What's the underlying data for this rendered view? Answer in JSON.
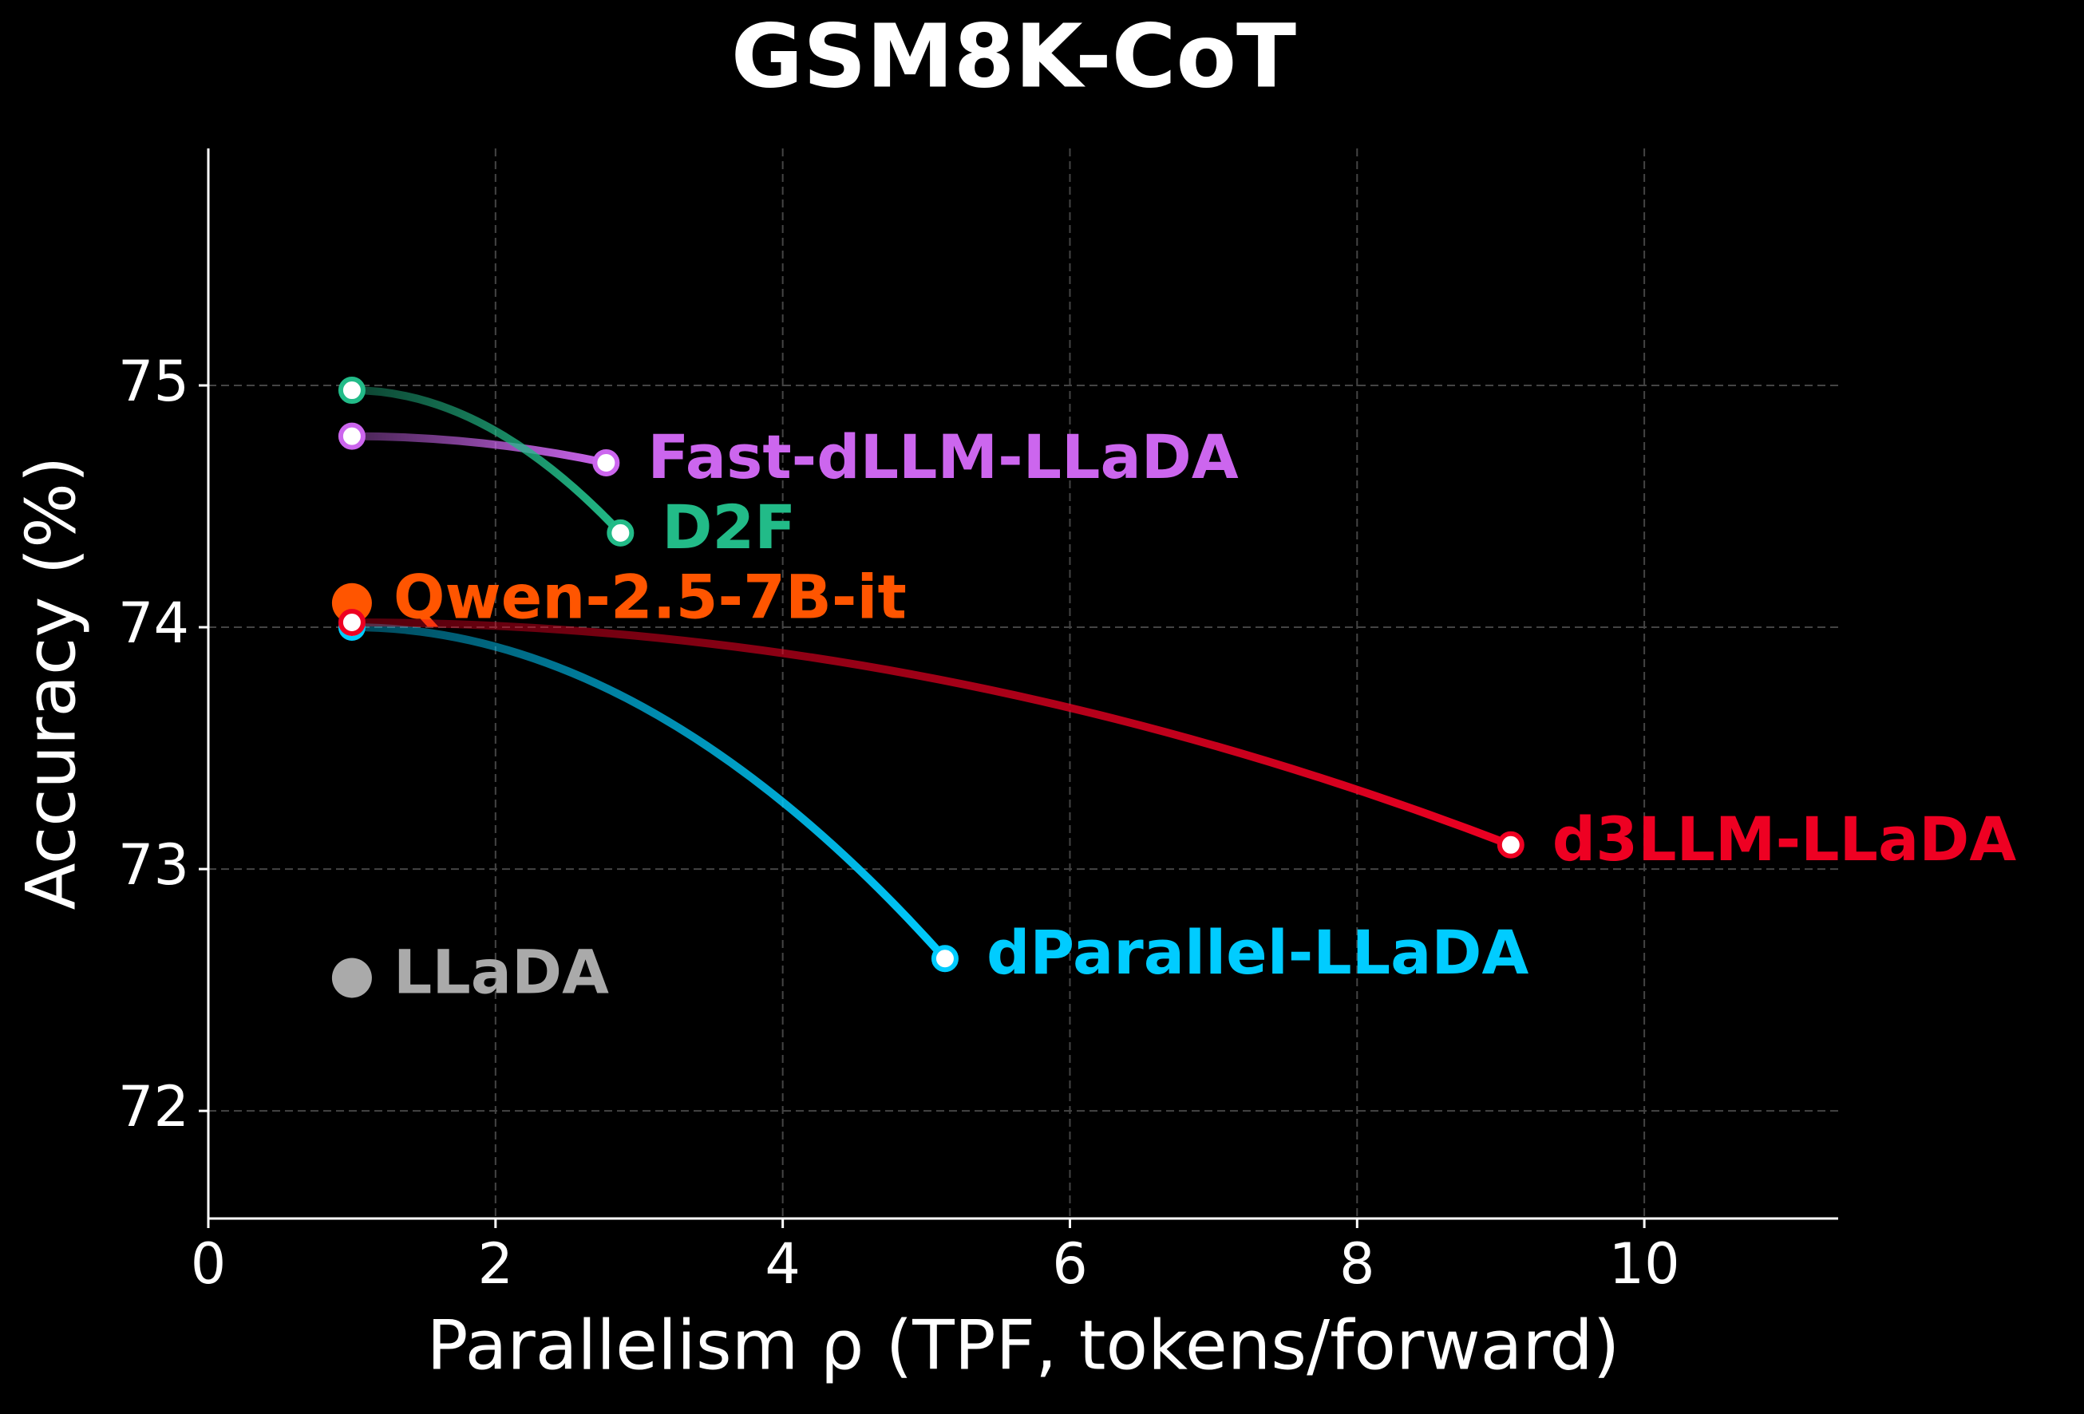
{
  "chart_data": {
    "type": "line",
    "title": "GSM8K-CoT",
    "x_label": "Parallelism ρ (TPF, tokens/forward)",
    "y_label": "Accuracy (%)",
    "xlim": [
      0,
      11.35
    ],
    "ylim": [
      71.555,
      75.98
    ],
    "xticks": [
      0,
      2,
      4,
      6,
      8,
      10
    ],
    "yticks": [
      72,
      73,
      74,
      75
    ],
    "grid": true,
    "series": [
      {
        "name": "Fast-dLLM-LLaDA",
        "color": "#cc66ee",
        "x": [
          1,
          2.77
        ],
        "values": [
          74.79,
          74.68
        ]
      },
      {
        "name": "D2F",
        "color": "#22bb88",
        "x": [
          1,
          2.87
        ],
        "values": [
          74.98,
          74.39
        ]
      },
      {
        "name": "dParallel-LLaDA",
        "color": "#00ccff",
        "x": [
          1,
          5.13
        ],
        "values": [
          74.0,
          72.63
        ]
      },
      {
        "name": "Qwen-2.5-7B-it",
        "color": "#ff5500",
        "x": [
          1
        ],
        "values": [
          74.1
        ]
      },
      {
        "name": "d3LLM-LLaDA",
        "color": "#ee0022",
        "x": [
          1,
          9.07
        ],
        "values": [
          74.02,
          73.1
        ]
      },
      {
        "name": "LLaDA",
        "color": "#aaaaaa",
        "x": [
          1
        ],
        "values": [
          72.55
        ]
      }
    ]
  }
}
